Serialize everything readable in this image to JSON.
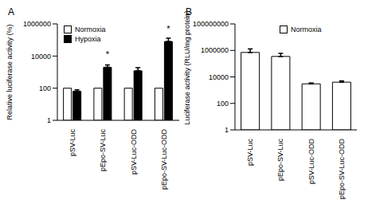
{
  "chart_data": [
    {
      "type": "bar",
      "title": "A",
      "y_label": "Relative luciferase activity (%)",
      "categories": [
        "pSV-Luc",
        "pEpo-SV-Luc",
        "pSV-Luc-ODD",
        "pEpo-SV-Luc-ODD"
      ],
      "series": [
        {
          "name": "Normoxia",
          "color": "#ffffff",
          "values": [
            100,
            100,
            100,
            100
          ]
        },
        {
          "name": "Hypoxia",
          "color": "#000000",
          "values": [
            65,
            2000,
            1200,
            80000
          ],
          "errors": [
            15,
            800,
            700,
            50000
          ]
        }
      ],
      "log": "y",
      "ylim": [
        1,
        1000000
      ],
      "yticks": [
        1,
        100,
        10000,
        1000000
      ],
      "legend": "upper left",
      "annotations": [
        {
          "category": "pEpo-SV-Luc",
          "series": "Hypoxia",
          "text": "*"
        },
        {
          "category": "pEpo-SV-Luc-ODD",
          "series": "Hypoxia",
          "text": "*"
        }
      ]
    },
    {
      "type": "bar",
      "title": "B",
      "y_label": "Luciferase activity (RLU/mg protein)",
      "categories": [
        "pSV-Luc",
        "pEpo-SV-Luc",
        "pSV-Luc-ODD",
        "pEpo-SV-Luc-ODD"
      ],
      "series": [
        {
          "name": "Normoxia",
          "color": "#ffffff",
          "values": [
            700000,
            350000,
            3000,
            4000
          ],
          "errors": [
            600000,
            250000,
            500,
            1000
          ]
        }
      ],
      "log": "y",
      "ylim": [
        1,
        100000000
      ],
      "yticks": [
        1,
        100,
        10000,
        1000000,
        100000000
      ],
      "legend": "upper right"
    }
  ]
}
